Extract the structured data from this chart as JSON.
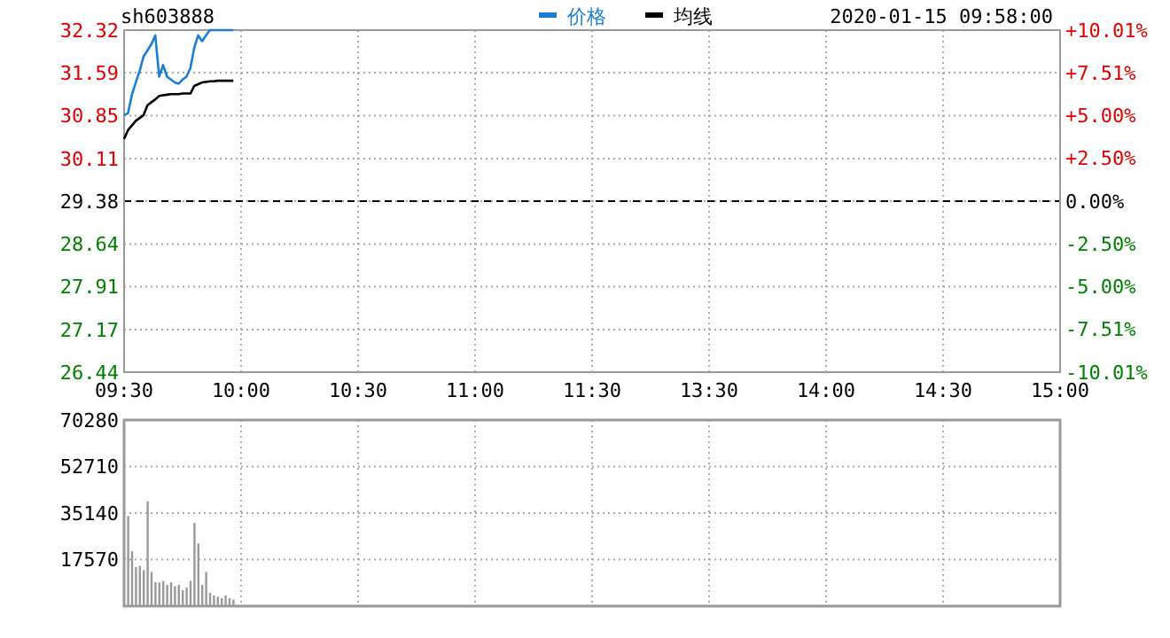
{
  "chart_data": [
    {
      "type": "line",
      "annotations": [
        "sh603888",
        "2020-01-15 09:58:00"
      ],
      "legend": "top",
      "grid": true,
      "line_style": "solid",
      "categories": [
        "09:30",
        null,
        null,
        null,
        null,
        null,
        null,
        null,
        null,
        null,
        null,
        null,
        null,
        null,
        null,
        null,
        null,
        null,
        null,
        null,
        null,
        null,
        null,
        null,
        null,
        null,
        null,
        null,
        null,
        null,
        "10:00",
        null,
        null,
        null,
        null,
        null,
        null,
        null,
        null,
        null,
        null,
        null,
        null,
        null,
        null,
        null,
        null,
        null,
        null,
        null,
        null,
        null,
        null,
        null,
        null,
        null,
        null,
        null,
        null,
        null,
        "10:30",
        null,
        null,
        null,
        null,
        null,
        null,
        null,
        null,
        null,
        null,
        null,
        null,
        null,
        null,
        null,
        null,
        null,
        null,
        null,
        null,
        null,
        null,
        null,
        null,
        null,
        null,
        null,
        null,
        null,
        "11:00",
        null,
        null,
        null,
        null,
        null,
        null,
        null,
        null,
        null,
        null,
        null,
        null,
        null,
        null,
        null,
        null,
        null,
        null,
        null,
        null,
        null,
        null,
        null,
        null,
        null,
        null,
        null,
        null,
        null,
        "11:30",
        null,
        null,
        null,
        null,
        null,
        null,
        null,
        null,
        null,
        null,
        null,
        null,
        null,
        null,
        null,
        null,
        null,
        null,
        null,
        null,
        null,
        null,
        null,
        null,
        null,
        null,
        null,
        null,
        null,
        "13:30",
        null,
        null,
        null,
        null,
        null,
        null,
        null,
        null,
        null,
        null,
        null,
        null,
        null,
        null,
        null,
        null,
        null,
        null,
        null,
        null,
        null,
        null,
        null,
        null,
        null,
        null,
        null,
        null,
        null,
        "14:00",
        null,
        null,
        null,
        null,
        null,
        null,
        null,
        null,
        null,
        null,
        null,
        null,
        null,
        null,
        null,
        null,
        null,
        null,
        null,
        null,
        null,
        null,
        null,
        null,
        null,
        null,
        null,
        null,
        null,
        "14:30",
        null,
        null,
        null,
        null,
        null,
        null,
        null,
        null,
        null,
        null,
        null,
        null,
        null,
        null,
        null,
        null,
        null,
        null,
        null,
        null,
        null,
        null,
        null,
        null,
        null,
        null,
        null,
        null,
        null,
        "15:00"
      ],
      "ylim": [
        26.44,
        32.32
      ],
      "yticks": [
        26.44,
        27.17,
        27.91,
        28.64,
        29.38,
        30.11,
        30.85,
        31.59,
        32.32
      ],
      "y2lim": [
        -10.01,
        10.01
      ],
      "y2ticks": [
        {
          "value": -10.01,
          "label": "-10.01%"
        },
        {
          "value": -7.51,
          "label": "-7.51%"
        },
        {
          "value": -5,
          "label": "-5.00%"
        },
        {
          "value": -2.5,
          "label": "-2.50%"
        },
        {
          "value": 0,
          "label": "0.00%"
        },
        {
          "value": 2.5,
          "label": "+2.50%"
        },
        {
          "value": 5,
          "label": "+5.00%"
        },
        {
          "value": 7.51,
          "label": "+7.51%"
        },
        {
          "value": 10.01,
          "label": "+10.01%"
        }
      ],
      "ref_lines": [
        {
          "axis": "y",
          "value": 29.38,
          "color": "#000000",
          "line_style": "dashed"
        }
      ],
      "series": [
        {
          "name": "价格",
          "color": "#1a7fd4",
          "values": [
            30.86,
            30.89,
            31.21,
            31.42,
            31.62,
            31.87,
            31.97,
            32.08,
            32.23,
            31.52,
            31.72,
            31.52,
            31.47,
            31.42,
            31.4,
            31.47,
            31.52,
            31.67,
            32.02,
            32.23,
            32.13,
            32.23,
            32.32,
            32.32,
            32.32,
            32.32,
            32.32,
            32.32,
            32.32,
            null,
            null,
            null,
            null,
            null,
            null,
            null,
            null,
            null,
            null,
            null,
            null,
            null,
            null,
            null,
            null,
            null,
            null,
            null,
            null,
            null,
            null,
            null,
            null,
            null,
            null,
            null,
            null,
            null,
            null,
            null,
            null,
            null,
            null,
            null,
            null,
            null,
            null,
            null,
            null,
            null,
            null,
            null,
            null,
            null,
            null,
            null,
            null,
            null,
            null,
            null,
            null,
            null,
            null,
            null,
            null,
            null,
            null,
            null,
            null,
            null,
            null,
            null,
            null,
            null,
            null,
            null,
            null,
            null,
            null,
            null,
            null,
            null,
            null,
            null,
            null,
            null,
            null,
            null,
            null,
            null,
            null,
            null,
            null,
            null,
            null,
            null,
            null,
            null,
            null,
            null,
            null,
            null,
            null,
            null,
            null,
            null,
            null,
            null,
            null,
            null,
            null,
            null,
            null,
            null,
            null,
            null,
            null,
            null,
            null,
            null,
            null,
            null,
            null,
            null,
            null,
            null,
            null,
            null,
            null,
            null,
            null,
            null,
            null,
            null,
            null,
            null,
            null,
            null,
            null,
            null,
            null,
            null,
            null,
            null,
            null,
            null,
            null,
            null,
            null,
            null,
            null,
            null,
            null,
            null,
            null,
            null,
            null,
            null,
            null,
            null,
            null,
            null,
            null,
            null,
            null,
            null,
            null,
            null,
            null,
            null,
            null,
            null,
            null,
            null,
            null,
            null,
            null,
            null,
            null,
            null,
            null,
            null,
            null,
            null,
            null,
            null,
            null,
            null,
            null,
            null,
            null,
            null,
            null,
            null,
            null,
            null,
            null,
            null,
            null,
            null,
            null,
            null,
            null,
            null,
            null,
            null,
            null,
            null,
            null,
            null,
            null,
            null,
            null,
            null,
            null,
            null,
            null,
            null,
            null,
            null,
            null
          ]
        },
        {
          "name": "均线",
          "color": "#000000",
          "values": [
            30.45,
            30.6,
            30.68,
            30.76,
            30.81,
            30.86,
            31.03,
            31.08,
            31.13,
            31.19,
            31.2,
            31.21,
            31.22,
            31.22,
            31.22,
            31.23,
            31.23,
            31.23,
            31.36,
            31.39,
            31.42,
            31.43,
            31.44,
            31.44,
            31.45,
            31.45,
            31.45,
            31.45,
            31.45,
            null,
            null,
            null,
            null,
            null,
            null,
            null,
            null,
            null,
            null,
            null,
            null,
            null,
            null,
            null,
            null,
            null,
            null,
            null,
            null,
            null,
            null,
            null,
            null,
            null,
            null,
            null,
            null,
            null,
            null,
            null,
            null,
            null,
            null,
            null,
            null,
            null,
            null,
            null,
            null,
            null,
            null,
            null,
            null,
            null,
            null,
            null,
            null,
            null,
            null,
            null,
            null,
            null,
            null,
            null,
            null,
            null,
            null,
            null,
            null,
            null,
            null,
            null,
            null,
            null,
            null,
            null,
            null,
            null,
            null,
            null,
            null,
            null,
            null,
            null,
            null,
            null,
            null,
            null,
            null,
            null,
            null,
            null,
            null,
            null,
            null,
            null,
            null,
            null,
            null,
            null,
            null,
            null,
            null,
            null,
            null,
            null,
            null,
            null,
            null,
            null,
            null,
            null,
            null,
            null,
            null,
            null,
            null,
            null,
            null,
            null,
            null,
            null,
            null,
            null,
            null,
            null,
            null,
            null,
            null,
            null,
            null,
            null,
            null,
            null,
            null,
            null,
            null,
            null,
            null,
            null,
            null,
            null,
            null,
            null,
            null,
            null,
            null,
            null,
            null,
            null,
            null,
            null,
            null,
            null,
            null,
            null,
            null,
            null,
            null,
            null,
            null,
            null,
            null,
            null,
            null,
            null,
            null,
            null,
            null,
            null,
            null,
            null,
            null,
            null,
            null,
            null,
            null,
            null,
            null,
            null,
            null,
            null,
            null,
            null,
            null,
            null,
            null,
            null,
            null,
            null,
            null,
            null,
            null,
            null,
            null,
            null,
            null,
            null,
            null,
            null,
            null,
            null,
            null,
            null,
            null,
            null,
            null,
            null,
            null,
            null,
            null,
            null,
            null,
            null,
            null,
            null,
            null,
            null,
            null,
            null,
            null
          ]
        }
      ]
    },
    {
      "type": "bar",
      "grid": true,
      "tick_labels": "y",
      "color": "#999999",
      "categories": [
        null,
        null,
        null,
        null,
        null,
        null,
        null,
        null,
        null,
        null,
        null,
        null,
        null,
        null,
        null,
        null,
        null,
        null,
        null,
        null,
        null,
        null,
        null,
        null,
        null,
        null,
        null,
        null,
        null,
        null,
        null,
        null,
        null,
        null,
        null,
        null,
        null,
        null,
        null,
        null,
        null,
        null,
        null,
        null,
        null,
        null,
        null,
        null,
        null,
        null,
        null,
        null,
        null,
        null,
        null,
        null,
        null,
        null,
        null,
        null,
        null,
        null,
        null,
        null,
        null,
        null,
        null,
        null,
        null,
        null,
        null,
        null,
        null,
        null,
        null,
        null,
        null,
        null,
        null,
        null,
        null,
        null,
        null,
        null,
        null,
        null,
        null,
        null,
        null,
        null,
        null,
        null,
        null,
        null,
        null,
        null,
        null,
        null,
        null,
        null,
        null,
        null,
        null,
        null,
        null,
        null,
        null,
        null,
        null,
        null,
        null,
        null,
        null,
        null,
        null,
        null,
        null,
        null,
        null,
        null,
        null,
        null,
        null,
        null,
        null,
        null,
        null,
        null,
        null,
        null,
        null,
        null,
        null,
        null,
        null,
        null,
        null,
        null,
        null,
        null,
        null,
        null,
        null,
        null,
        null,
        null,
        null,
        null,
        null,
        null,
        null,
        null,
        null,
        null,
        null,
        null,
        null,
        null,
        null,
        null,
        null,
        null,
        null,
        null,
        null,
        null,
        null,
        null,
        null,
        null,
        null,
        null,
        null,
        null,
        null,
        null,
        null,
        null,
        null,
        null,
        null,
        null,
        null,
        null,
        null,
        null,
        null,
        null,
        null,
        null,
        null,
        null,
        null,
        null,
        null,
        null,
        null,
        null,
        null,
        null,
        null,
        null,
        null,
        null,
        null,
        null,
        null,
        null,
        null,
        null,
        null,
        null,
        null,
        null,
        null,
        null,
        null,
        null,
        null,
        null,
        null,
        null,
        null,
        null,
        null,
        null,
        null,
        null,
        null,
        null,
        null,
        null,
        null,
        null,
        null,
        null,
        null,
        null,
        null,
        null,
        null
      ],
      "values": [
        null,
        34000,
        20700,
        14700,
        15200,
        13600,
        39600,
        12900,
        9000,
        8900,
        9500,
        8000,
        9000,
        7500,
        8000,
        6000,
        7000,
        9500,
        31400,
        23600,
        8000,
        12900,
        5000,
        4000,
        3500,
        3000,
        4000,
        3000,
        2500,
        null,
        null,
        null,
        null,
        null,
        null,
        null,
        null,
        null,
        null,
        null,
        null,
        null,
        null,
        null,
        null,
        null,
        null,
        null,
        null,
        null,
        null,
        null,
        null,
        null,
        null,
        null,
        null,
        null,
        null,
        null,
        null,
        null,
        null,
        null,
        null,
        null,
        null,
        null,
        null,
        null,
        null,
        null,
        null,
        null,
        null,
        null,
        null,
        null,
        null,
        null,
        null,
        null,
        null,
        null,
        null,
        null,
        null,
        null,
        null,
        null,
        null,
        null,
        null,
        null,
        null,
        null,
        null,
        null,
        null,
        null,
        null,
        null,
        null,
        null,
        null,
        null,
        null,
        null,
        null,
        null,
        null,
        null,
        null,
        null,
        null,
        null,
        null,
        null,
        null,
        null,
        null,
        null,
        null,
        null,
        null,
        null,
        null,
        null,
        null,
        null,
        null,
        null,
        null,
        null,
        null,
        null,
        null,
        null,
        null,
        null,
        null,
        null,
        null,
        null,
        null,
        null,
        null,
        null,
        null,
        null,
        null,
        null,
        null,
        null,
        null,
        null,
        null,
        null,
        null,
        null,
        null,
        null,
        null,
        null,
        null,
        null,
        null,
        null,
        null,
        null,
        null,
        null,
        null,
        null,
        null,
        null,
        null,
        null,
        null,
        null,
        null,
        null,
        null,
        null,
        null,
        null,
        null,
        null,
        null,
        null,
        null,
        null,
        null,
        null,
        null,
        null,
        null,
        null,
        null,
        null,
        null,
        null,
        null,
        null,
        null,
        null,
        null,
        null,
        null,
        null,
        null,
        null,
        null,
        null,
        null,
        null,
        null,
        null,
        null,
        null,
        null,
        null,
        null,
        null,
        null,
        null,
        null,
        null,
        null,
        null,
        null,
        null,
        null,
        null,
        null,
        null,
        null,
        null,
        null,
        null,
        null
      ],
      "ylim": [
        0,
        70280
      ],
      "yticks": [
        {
          "value": 0,
          "label": null
        },
        17570,
        35140,
        52710,
        70280
      ]
    }
  ]
}
